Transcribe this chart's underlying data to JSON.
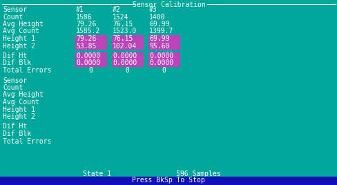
{
  "title": "Sensor Calibration",
  "bg_color": "#00A89C",
  "text_color": "#FFFFFF",
  "highlight_bg": "#BB44BB",
  "bottom_bar_bg": "#1111BB",
  "bottom_bar_text": "#FFFFFF",
  "font_size": 7.0,
  "bottom_text": "Press BkSp To Stop",
  "state_text": "State 1",
  "samples_text": "596 Samples",
  "labels1": [
    "Sensor",
    "Count",
    "Avg Height",
    "Avg Count",
    "Height 1",
    "Height 2"
  ],
  "r1c0": [
    "#1",
    "#2",
    "#3"
  ],
  "r1c1": [
    "1586",
    "1524",
    "1400"
  ],
  "r1c2": [
    "79.26",
    "76.15",
    "69.99"
  ],
  "r1c3": [
    "1585.2",
    "1523.0",
    "1399.7"
  ],
  "r1c4": [
    "79.26",
    "76.15",
    "69.99"
  ],
  "r1c5": [
    "53.85",
    "102.04",
    "95.60"
  ],
  "diff_labels": [
    "Dif Ht",
    "Dif Blk",
    "Total Errors"
  ],
  "diff_c1": [
    "0.0000",
    "0.0000",
    "0"
  ],
  "diff_c2": [
    "0.0000",
    "0.0000",
    "0"
  ],
  "diff_c3": [
    "0.0000",
    "0.0000",
    "0"
  ],
  "labels2": [
    "Sensor",
    "Count",
    "Avg Height",
    "Avg Count",
    "Height 1",
    "Height 2"
  ],
  "diff_labels2": [
    "Dif Ht",
    "Dif Blk",
    "Total Errors"
  ]
}
